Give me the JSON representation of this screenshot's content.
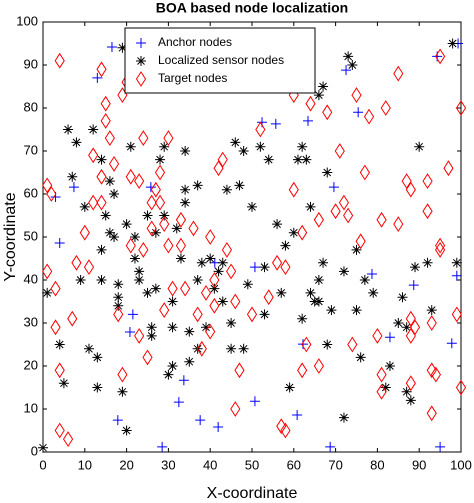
{
  "chart_data": {
    "type": "scatter",
    "title": "BOA based node localization",
    "x_label": "X-coordinate",
    "y_label": "Y-coordinate",
    "xlim": [
      0,
      100
    ],
    "ylim": [
      0,
      100
    ],
    "xticks": [
      0,
      10,
      20,
      30,
      40,
      50,
      60,
      70,
      80,
      90,
      100
    ],
    "yticks": [
      0,
      10,
      20,
      30,
      40,
      50,
      60,
      70,
      80,
      90,
      100
    ],
    "legend": "north",
    "grid": false,
    "series": [
      {
        "name": "Anchor nodes",
        "color": "#0000ff",
        "marker": "plus",
        "x": [
          13,
          16.5,
          3,
          7.4,
          4,
          25.8,
          52.4,
          55.7,
          63.4,
          75.4,
          72.5,
          94.3,
          99.3,
          99,
          78.7,
          88.7,
          69.6,
          50.7,
          41.1,
          21.5,
          33.7,
          32.5,
          17.9,
          37.6,
          41.9,
          50.7,
          60.8,
          68.7,
          28.5,
          95,
          97.8,
          83,
          62.2,
          20.8
        ],
        "y": [
          87,
          94.2,
          59.3,
          61.6,
          48.6,
          61.6,
          76.7,
          76.3,
          77,
          79,
          88.8,
          92,
          95,
          41,
          41.4,
          38.8,
          61.6,
          43,
          44,
          32,
          16.7,
          11.6,
          7.4,
          7.4,
          5.8,
          11.8,
          8.6,
          1.2,
          1.2,
          1.2,
          25.3,
          26.7,
          25.1,
          27.9
        ]
      },
      {
        "name": "Localized sensor nodes",
        "color": "#000000",
        "marker": "asterisk",
        "x": [
          0,
          1,
          4,
          5,
          6,
          8,
          7,
          10,
          9,
          11,
          13,
          13,
          12,
          14,
          15,
          16,
          17,
          16,
          14,
          14,
          19,
          17,
          18,
          18,
          19,
          18,
          20,
          21,
          22,
          22,
          23,
          23,
          25,
          25,
          26,
          26,
          27,
          27,
          28,
          29,
          29,
          20,
          30,
          31,
          31,
          31,
          32,
          33,
          34,
          34,
          34,
          35,
          35,
          38,
          37,
          37,
          39,
          37,
          40,
          41,
          42,
          43,
          43,
          45,
          45,
          44,
          46,
          48,
          49,
          48,
          50,
          47,
          52,
          53,
          53,
          54,
          56,
          58,
          58,
          57,
          59,
          60,
          61,
          62,
          62,
          63,
          64,
          65,
          66,
          66,
          67,
          67,
          68,
          68,
          69,
          64,
          66,
          72,
          72,
          73,
          74,
          75,
          75,
          76,
          77,
          79,
          82,
          83,
          85,
          86,
          87,
          88,
          89,
          90,
          87,
          92,
          98,
          99,
          93
        ],
        "y": [
          1,
          37,
          25,
          16,
          75,
          72,
          64,
          57,
          40,
          24,
          22,
          15,
          75,
          68,
          55,
          51,
          60,
          63,
          47,
          40,
          94,
          50,
          39,
          36,
          14,
          34,
          53,
          71,
          50,
          45,
          40,
          42,
          55,
          37,
          29,
          27,
          38,
          51,
          68,
          71,
          55,
          5,
          18,
          20,
          29,
          35,
          52,
          45,
          61,
          58,
          70,
          28,
          21,
          44,
          40,
          24,
          29,
          62,
          45,
          38,
          42,
          35,
          44,
          30,
          24,
          61,
          72,
          24,
          39,
          70,
          57,
          62,
          71,
          32,
          43,
          68,
          53,
          48,
          92,
          37,
          15,
          51,
          68,
          71,
          31,
          68,
          37,
          35,
          40,
          35,
          44,
          85,
          25,
          65,
          33,
          57,
          83,
          42,
          8,
          92,
          90,
          47,
          33,
          22,
          40,
          37,
          15,
          20,
          30,
          36,
          14,
          12,
          43,
          71,
          29,
          44,
          95,
          44,
          33
        ]
      },
      {
        "name": "Target nodes",
        "color": "#ff0000",
        "marker": "diamond",
        "x": [
          4,
          1,
          2,
          1,
          3,
          3,
          4,
          4,
          6,
          7,
          8,
          10,
          11,
          12,
          12,
          14,
          14,
          14,
          15,
          15,
          16,
          17,
          18,
          19,
          19,
          20,
          21,
          21,
          23,
          23,
          24,
          24,
          25,
          26,
          26,
          27,
          28,
          28,
          29,
          29,
          30,
          30,
          31,
          33,
          33,
          34,
          36,
          37,
          38,
          39,
          40,
          40,
          41,
          41,
          42,
          43,
          44,
          45,
          46,
          46,
          47,
          50,
          51,
          52,
          54,
          56,
          57,
          58,
          58,
          60,
          60,
          62,
          62,
          63,
          64,
          66,
          66,
          68,
          70,
          72,
          71,
          73,
          74,
          75,
          76,
          77,
          78,
          80,
          81,
          81,
          81,
          82,
          85,
          85,
          87,
          88,
          88,
          88,
          88,
          89,
          92,
          92,
          93,
          93,
          93,
          94,
          95,
          95,
          95,
          97,
          99,
          100,
          100
        ],
        "y": [
          91,
          62,
          60,
          42,
          38,
          29,
          19,
          5,
          3,
          31,
          44,
          51,
          43,
          58,
          69,
          89,
          58,
          64,
          81,
          77,
          73,
          67,
          32,
          18,
          83,
          86,
          48,
          64,
          27,
          63,
          73,
          47,
          22,
          52,
          58,
          61,
          58,
          65,
          53,
          33,
          48,
          73,
          38,
          48,
          54,
          38,
          52,
          32,
          24,
          37,
          28,
          50,
          34,
          40,
          66,
          68,
          47,
          42,
          35,
          10,
          19,
          32,
          88,
          75,
          36,
          44,
          6,
          43,
          5,
          83,
          61,
          51,
          19,
          25,
          81,
          54,
          20,
          79,
          56,
          58,
          70,
          55,
          25,
          83,
          49,
          65,
          78,
          27,
          54,
          18,
          14,
          80,
          88,
          53,
          63,
          31,
          27,
          16,
          61,
          29,
          56,
          63,
          9,
          30,
          19,
          18,
          47,
          48,
          92,
          66,
          32,
          80,
          15
        ]
      }
    ]
  }
}
